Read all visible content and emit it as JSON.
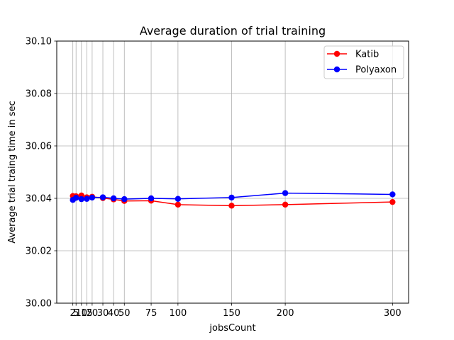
{
  "chart_data": {
    "type": "line",
    "title": "Average duration of trial training",
    "xlabel": "jobsCount",
    "ylabel": "Average trial traing time in sec",
    "x": [
      2,
      5,
      10,
      15,
      20,
      30,
      40,
      50,
      75,
      100,
      150,
      200,
      300
    ],
    "xticks": [
      2,
      5,
      10,
      15,
      20,
      30,
      40,
      50,
      75,
      100,
      150,
      200,
      300
    ],
    "xtick_labels": [
      "2",
      "5",
      "10",
      "15",
      "20",
      "30",
      "40",
      "50",
      "75",
      "100",
      "150",
      "200",
      "300"
    ],
    "xlim": [
      -13,
      315
    ],
    "ylim": [
      30.0,
      30.1
    ],
    "yticks": [
      30.0,
      30.02,
      30.04,
      30.06,
      30.08,
      30.1
    ],
    "ytick_labels": [
      "30.00",
      "30.02",
      "30.04",
      "30.06",
      "30.08",
      "30.10"
    ],
    "grid": true,
    "legend_position": "top-right",
    "series": [
      {
        "name": "Katib",
        "color": "#ff0000",
        "values": [
          30.0409,
          30.0408,
          30.0411,
          30.0404,
          30.0406,
          30.0401,
          30.0396,
          30.039,
          30.0391,
          30.0376,
          30.0372,
          30.0376,
          30.0386
        ]
      },
      {
        "name": "Polyaxon",
        "color": "#0000ff",
        "values": [
          30.0394,
          30.0402,
          30.0397,
          30.0398,
          30.0403,
          30.0404,
          30.04,
          30.0397,
          30.04,
          30.0398,
          30.0403,
          30.042,
          30.0415
        ]
      }
    ]
  }
}
